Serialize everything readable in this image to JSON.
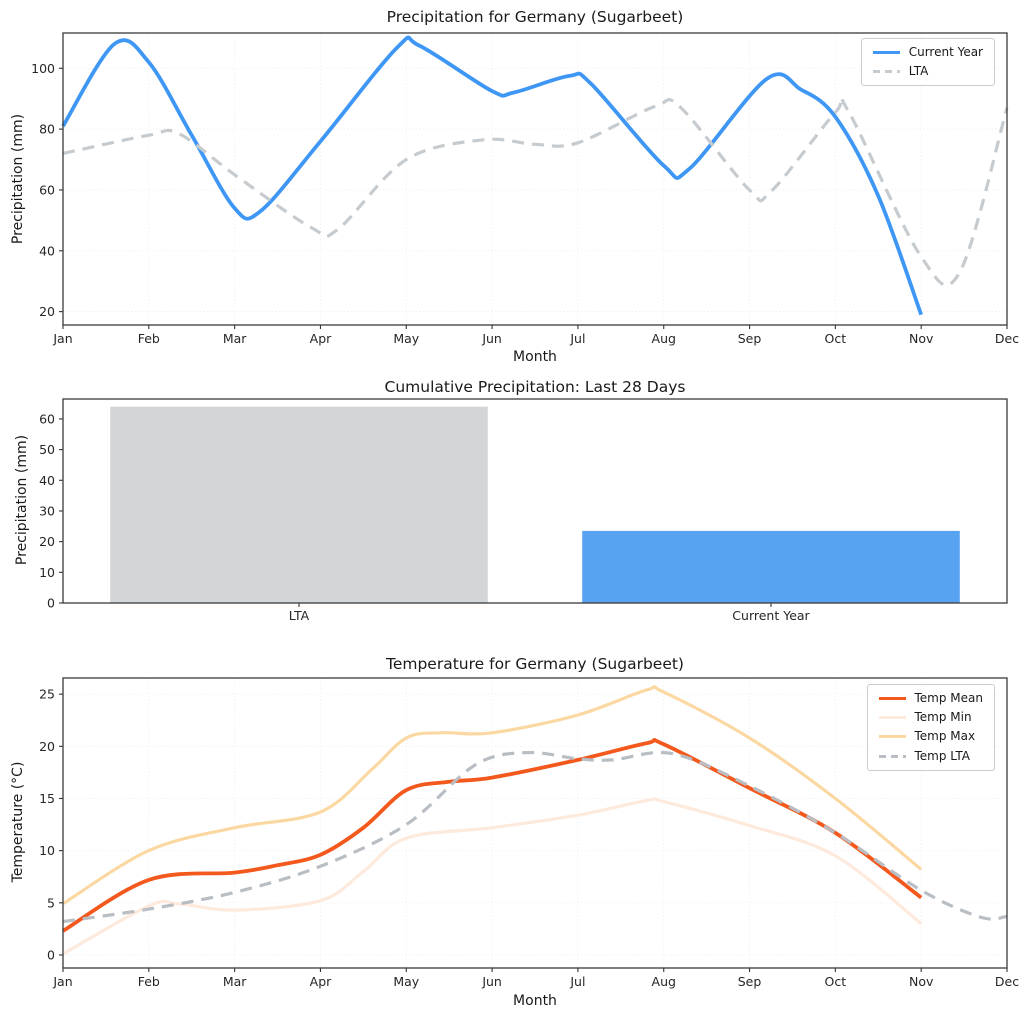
{
  "chart_data": [
    {
      "type": "line",
      "title": "Precipitation for Germany (Sugarbeet)",
      "xlabel": "Month",
      "ylabel": "Precipitation (mm)",
      "x_tick_labels": [
        "Jan",
        "Feb",
        "Mar",
        "Apr",
        "May",
        "Jun",
        "Jul",
        "Aug",
        "Sep",
        "Oct",
        "Nov",
        "Dec"
      ],
      "y_ticks": [
        20,
        40,
        60,
        80,
        100
      ],
      "ylim": [
        15.6,
        111.6
      ],
      "grid": true,
      "legend_position": "top-right",
      "series": [
        {
          "name": "Current Year",
          "slug": "current-year",
          "color": "#3e96f5",
          "width": 3.8,
          "dash": null,
          "points": [
            [
              0,
              81
            ],
            [
              0.6,
              108
            ],
            [
              1,
              102
            ],
            [
              1.5,
              78
            ],
            [
              2,
              54
            ],
            [
              2.3,
              53
            ],
            [
              3,
              76
            ],
            [
              3.9,
              107
            ],
            [
              4.15,
              107.5
            ],
            [
              5,
              92.5
            ],
            [
              5.25,
              92
            ],
            [
              5.9,
              97.5
            ],
            [
              6.15,
              95
            ],
            [
              7,
              68
            ],
            [
              7.3,
              67
            ],
            [
              8.2,
              96.5
            ],
            [
              8.6,
              93
            ],
            [
              9,
              84
            ],
            [
              9.5,
              58
            ],
            [
              10,
              19
            ]
          ]
        },
        {
          "name": "LTA",
          "slug": "lta",
          "color": "#c6cbcf",
          "width": 3.2,
          "dash": "12 8",
          "points": [
            [
              0,
              72
            ],
            [
              1,
              78
            ],
            [
              1.35,
              78.5
            ],
            [
              2,
              65
            ],
            [
              2.9,
              47.5
            ],
            [
              3.2,
              47
            ],
            [
              4,
              70
            ],
            [
              4.9,
              76.5
            ],
            [
              5.5,
              75
            ],
            [
              6,
              75.5
            ],
            [
              6.9,
              87.5
            ],
            [
              7.2,
              87
            ],
            [
              8,
              60
            ],
            [
              8.25,
              59.5
            ],
            [
              9,
              85.5
            ],
            [
              9.15,
              86
            ],
            [
              10,
              38
            ],
            [
              10.45,
              33
            ],
            [
              11,
              87
            ]
          ]
        }
      ]
    },
    {
      "type": "bar",
      "title": "Cumulative Precipitation: Last 28 Days",
      "ylabel": "Precipitation (mm)",
      "categories": [
        "LTA",
        "Current Year"
      ],
      "values": [
        64,
        23.5
      ],
      "bar_colors": [
        "#d2d6d9",
        "#58a2f2"
      ],
      "y_ticks": [
        0,
        10,
        20,
        30,
        40,
        50,
        60
      ],
      "ylim": [
        0,
        66.5
      ],
      "grid": false
    },
    {
      "type": "line",
      "title": "Temperature for Germany (Sugarbeet)",
      "xlabel": "Month",
      "ylabel": "Temperature (°C)",
      "x_tick_labels": [
        "Jan",
        "Feb",
        "Mar",
        "Apr",
        "May",
        "Jun",
        "Jul",
        "Aug",
        "Sep",
        "Oct",
        "Nov",
        "Dec"
      ],
      "y_ticks": [
        0,
        5,
        10,
        15,
        20,
        25
      ],
      "ylim": [
        -1.25,
        26.55
      ],
      "grid": true,
      "legend_position": "top-right",
      "series": [
        {
          "name": "Temp Mean",
          "slug": "temp-mean",
          "color": "#f3581c",
          "width": 3.8,
          "dash": null,
          "points": [
            [
              0,
              2.3
            ],
            [
              1,
              7.2
            ],
            [
              2,
              7.9
            ],
            [
              2.5,
              8.6
            ],
            [
              3,
              9.6
            ],
            [
              3.5,
              12.2
            ],
            [
              4,
              15.8
            ],
            [
              4.5,
              16.6
            ],
            [
              5,
              17
            ],
            [
              6,
              18.7
            ],
            [
              6.8,
              20.3
            ],
            [
              7,
              20.2
            ],
            [
              8,
              16
            ],
            [
              9,
              11.7
            ],
            [
              10,
              5.5
            ]
          ]
        },
        {
          "name": "Temp Min",
          "slug": "temp-min",
          "color": "#fdeadc",
          "width": 3.2,
          "dash": null,
          "points": [
            [
              0,
              0.1
            ],
            [
              1,
              4.7
            ],
            [
              1.35,
              4.9
            ],
            [
              2,
              4.3
            ],
            [
              3,
              5.2
            ],
            [
              3.5,
              8
            ],
            [
              4,
              11.2
            ],
            [
              5,
              12.2
            ],
            [
              6,
              13.4
            ],
            [
              6.8,
              14.8
            ],
            [
              7,
              14.7
            ],
            [
              8,
              12.4
            ],
            [
              9,
              9.5
            ],
            [
              10,
              3
            ]
          ]
        },
        {
          "name": "Temp Max",
          "slug": "temp-max",
          "color": "#fbd8a2",
          "width": 3.2,
          "dash": null,
          "points": [
            [
              0,
              4.9
            ],
            [
              1,
              10
            ],
            [
              2,
              12.2
            ],
            [
              3,
              13.7
            ],
            [
              3.6,
              17.8
            ],
            [
              4,
              20.8
            ],
            [
              4.4,
              21.3
            ],
            [
              5,
              21.3
            ],
            [
              6,
              23
            ],
            [
              6.8,
              25.4
            ],
            [
              7,
              25.2
            ],
            [
              8,
              20.8
            ],
            [
              9,
              15
            ],
            [
              10,
              8.2
            ]
          ]
        },
        {
          "name": "Temp LTA",
          "slug": "temp-lta",
          "color": "#b8bec3",
          "width": 3.2,
          "dash": "12 8",
          "points": [
            [
              0,
              3.2
            ],
            [
              1,
              4.4
            ],
            [
              2,
              6
            ],
            [
              3,
              8.5
            ],
            [
              4,
              12.5
            ],
            [
              4.8,
              18.2
            ],
            [
              5.4,
              19.4
            ],
            [
              6,
              18.8
            ],
            [
              6.4,
              18.7
            ],
            [
              7.1,
              19.3
            ],
            [
              8,
              16.2
            ],
            [
              9,
              11.7
            ],
            [
              10,
              6.2
            ],
            [
              10.7,
              3.6
            ],
            [
              11,
              3.7
            ]
          ]
        }
      ]
    }
  ]
}
